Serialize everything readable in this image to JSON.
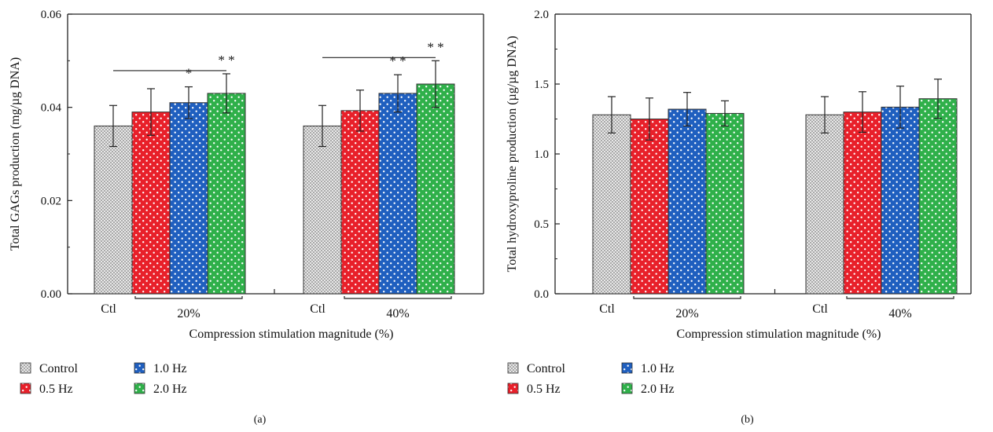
{
  "chart_data": [
    {
      "type": "bar",
      "panel_label": "(a)",
      "ylabel": "Total GAGs production (mg/µg DNA)",
      "xlabel": "Compression stimulation magnitude (%)",
      "ylim": [
        0,
        0.06
      ],
      "yticks": [
        "0.00",
        "0.02",
        "0.04",
        "0.06"
      ],
      "groups": [
        {
          "magnitude_label": "20%",
          "ctl_label": "Ctl",
          "values": [
            0.036,
            0.039,
            0.041,
            0.043
          ],
          "errors": [
            0.0044,
            0.005,
            0.0034,
            0.0042
          ],
          "significance": [
            "",
            "",
            "*",
            "* *"
          ]
        },
        {
          "magnitude_label": "40%",
          "ctl_label": "Ctl",
          "values": [
            0.036,
            0.0393,
            0.043,
            0.045
          ],
          "errors": [
            0.0044,
            0.0044,
            0.004,
            0.005
          ],
          "significance": [
            "",
            "",
            "* *",
            "* *"
          ]
        }
      ],
      "legend": [
        {
          "label": "Control",
          "color": "#a9a9a9"
        },
        {
          "label": "1.0 Hz",
          "color": "#1f5fbf"
        },
        {
          "label": "0.5 Hz",
          "color": "#e8202a"
        },
        {
          "label": "2.0 Hz",
          "color": "#2fb04a"
        }
      ]
    },
    {
      "type": "bar",
      "panel_label": "(b)",
      "ylabel": "Total hydroxyproline production (µg/µg DNA)",
      "xlabel": "Compression stimulation magnitude (%)",
      "ylim": [
        0,
        2.0
      ],
      "yticks": [
        "0.0",
        "0.5",
        "1.0",
        "1.5",
        "2.0"
      ],
      "groups": [
        {
          "magnitude_label": "20%",
          "ctl_label": "Ctl",
          "values": [
            1.28,
            1.25,
            1.32,
            1.29
          ],
          "errors": [
            0.13,
            0.15,
            0.12,
            0.09
          ],
          "significance": [
            "",
            "",
            "",
            ""
          ]
        },
        {
          "magnitude_label": "40%",
          "ctl_label": "Ctl",
          "values": [
            1.28,
            1.3,
            1.335,
            1.395
          ],
          "errors": [
            0.13,
            0.145,
            0.15,
            0.14
          ],
          "significance": [
            "",
            "",
            "",
            ""
          ]
        }
      ],
      "legend": [
        {
          "label": "Control",
          "color": "#a9a9a9"
        },
        {
          "label": "1.0 Hz",
          "color": "#1f5fbf"
        },
        {
          "label": "0.5 Hz",
          "color": "#e8202a"
        },
        {
          "label": "2.0 Hz",
          "color": "#2fb04a"
        }
      ]
    }
  ]
}
